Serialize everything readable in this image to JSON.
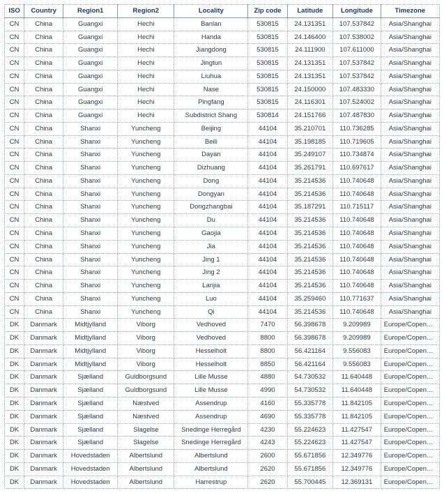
{
  "columns": [
    "ISO",
    "Country",
    "Region1",
    "Region2",
    "Locality",
    "Zip code",
    "Latitude",
    "Longitude",
    "Timezone"
  ],
  "rows": [
    [
      "CN",
      "China",
      "Guangxi",
      "Hechi",
      "Banlan",
      "530815",
      "24.131351",
      "107.537842",
      "Asia/Shanghai"
    ],
    [
      "CN",
      "China",
      "Guangxi",
      "Hechi",
      "Handa",
      "530815",
      "24.146400",
      "107.538002",
      "Asia/Shanghai"
    ],
    [
      "CN",
      "China",
      "Guangxi",
      "Hechi",
      "Jiangdong",
      "530815",
      "24.111900",
      "107.611000",
      "Asia/Shanghai"
    ],
    [
      "CN",
      "China",
      "Guangxi",
      "Hechi",
      "Jingtun",
      "530815",
      "24.131351",
      "107.537842",
      "Asia/Shanghai"
    ],
    [
      "CN",
      "China",
      "Guangxi",
      "Hechi",
      "Liuhua",
      "530815",
      "24.131351",
      "107.537842",
      "Asia/Shanghai"
    ],
    [
      "CN",
      "China",
      "Guangxi",
      "Hechi",
      "Nase",
      "530815",
      "24.150000",
      "107.483330",
      "Asia/Shanghai"
    ],
    [
      "CN",
      "China",
      "Guangxi",
      "Hechi",
      "Pingfang",
      "530815",
      "24.116301",
      "107.524002",
      "Asia/Shanghai"
    ],
    [
      "CN",
      "China",
      "Guangxi",
      "Hechi",
      "Subdistrict Shang",
      "530814",
      "24.151766",
      "107.487830",
      "Asia/Shanghai"
    ],
    [
      "CN",
      "China",
      "Shanxi",
      "Yuncheng",
      "Beijing",
      "44104",
      "35.210701",
      "110.736285",
      "Asia/Shanghai"
    ],
    [
      "CN",
      "China",
      "Shanxi",
      "Yuncheng",
      "Beili",
      "44104",
      "35.198185",
      "110.719605",
      "Asia/Shanghai"
    ],
    [
      "CN",
      "China",
      "Shanxi",
      "Yuncheng",
      "Dayan",
      "44104",
      "35.249107",
      "110.734874",
      "Asia/Shanghai"
    ],
    [
      "CN",
      "China",
      "Shanxi",
      "Yuncheng",
      "Dizhuang",
      "44104",
      "35.261791",
      "110.697617",
      "Asia/Shanghai"
    ],
    [
      "CN",
      "China",
      "Shanxi",
      "Yuncheng",
      "Dong",
      "44104",
      "35.214536",
      "110.740648",
      "Asia/Shanghai"
    ],
    [
      "CN",
      "China",
      "Shanxi",
      "Yuncheng",
      "Dongyan",
      "44104",
      "35.214536",
      "110.740648",
      "Asia/Shanghai"
    ],
    [
      "CN",
      "China",
      "Shanxi",
      "Yuncheng",
      "Dongzhangbai",
      "44104",
      "35.187291",
      "110.715117",
      "Asia/Shanghai"
    ],
    [
      "CN",
      "China",
      "Shanxi",
      "Yuncheng",
      "Du",
      "44104",
      "35.214536",
      "110.740648",
      "Asia/Shanghai"
    ],
    [
      "CN",
      "China",
      "Shanxi",
      "Yuncheng",
      "Gaojia",
      "44104",
      "35.214536",
      "110.740648",
      "Asia/Shanghai"
    ],
    [
      "CN",
      "China",
      "Shanxi",
      "Yuncheng",
      "Jia",
      "44104",
      "35.214536",
      "110.740648",
      "Asia/Shanghai"
    ],
    [
      "CN",
      "China",
      "Shanxi",
      "Yuncheng",
      "Jing 1",
      "44104",
      "35.214536",
      "110.740648",
      "Asia/Shanghai"
    ],
    [
      "CN",
      "China",
      "Shanxi",
      "Yuncheng",
      "Jing 2",
      "44104",
      "35.214536",
      "110.740648",
      "Asia/Shanghai"
    ],
    [
      "CN",
      "China",
      "Shanxi",
      "Yuncheng",
      "Lanjia",
      "44104",
      "35.214536",
      "110.740648",
      "Asia/Shanghai"
    ],
    [
      "CN",
      "China",
      "Shanxi",
      "Yuncheng",
      "Luo",
      "44104",
      "35.259460",
      "110.771637",
      "Asia/Shanghai"
    ],
    [
      "CN",
      "China",
      "Shanxi",
      "Yuncheng",
      "Qi",
      "44104",
      "35.214536",
      "110.740648",
      "Asia/Shanghai"
    ],
    [
      "DK",
      "Danmark",
      "Midtjylland",
      "Viborg",
      "Vedhoved",
      "7470",
      "56.398678",
      "9.209989",
      "Europe/Copenhagen"
    ],
    [
      "DK",
      "Danmark",
      "Midtjylland",
      "Viborg",
      "Vedhoved",
      "8800",
      "56.398678",
      "9.209989",
      "Europe/Copenhagen"
    ],
    [
      "DK",
      "Danmark",
      "Midtjylland",
      "Viborg",
      "Hesselholt",
      "8800",
      "56.421164",
      "9.556083",
      "Europe/Copenhagen"
    ],
    [
      "DK",
      "Danmark",
      "Midtjylland",
      "Viborg",
      "Hesselholt",
      "8850",
      "56.421164",
      "9.556083",
      "Europe/Copenhagen"
    ],
    [
      "DK",
      "Danmark",
      "Sjælland",
      "Guldborgsund",
      "Lille Musse",
      "4880",
      "54.730532",
      "11.640448",
      "Europe/Copenhagen"
    ],
    [
      "DK",
      "Danmark",
      "Sjælland",
      "Guldborgsund",
      "Lille Musse",
      "4990",
      "54.730532",
      "11.640448",
      "Europe/Copenhagen"
    ],
    [
      "DK",
      "Danmark",
      "Sjælland",
      "Næstved",
      "Assendrup",
      "4160",
      "55.335778",
      "11.842105",
      "Europe/Copenhagen"
    ],
    [
      "DK",
      "Danmark",
      "Sjælland",
      "Næstved",
      "Assendrup",
      "4690",
      "55.335778",
      "11.842105",
      "Europe/Copenhagen"
    ],
    [
      "DK",
      "Danmark",
      "Sjælland",
      "Slagelse",
      "Snedinge Herregård",
      "4230",
      "55.224623",
      "11.427547",
      "Europe/Copenhagen"
    ],
    [
      "DK",
      "Danmark",
      "Sjælland",
      "Slagelse",
      "Snedinge Herregård",
      "4243",
      "55.224623",
      "11.427547",
      "Europe/Copenhagen"
    ],
    [
      "DK",
      "Danmark",
      "Hovedstaden",
      "Albertslund",
      "Albertslund",
      "2600",
      "55.671856",
      "12.349776",
      "Europe/Copenhagen"
    ],
    [
      "DK",
      "Danmark",
      "Hovedstaden",
      "Albertslund",
      "Albertslund",
      "2620",
      "55.671856",
      "12.349776",
      "Europe/Copenhagen"
    ],
    [
      "DK",
      "Danmark",
      "Hovedstaden",
      "Albertslund",
      "Harrestrup",
      "2620",
      "55.700445",
      "12.369131",
      "Europe/Copenhagen"
    ]
  ]
}
